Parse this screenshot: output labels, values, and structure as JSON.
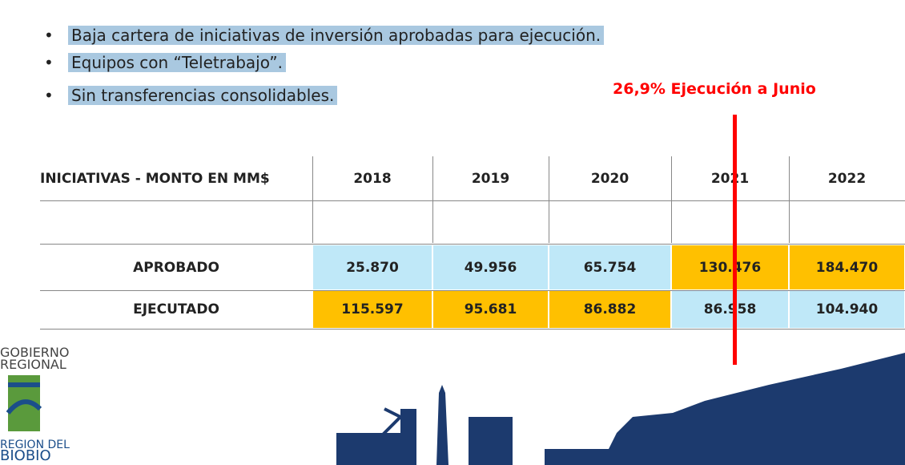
{
  "bullets": [
    "Baja cartera de iniciativas de inversión aprobadas para ejecución.",
    "Equipos con “Teletrabajo”.",
    "Sin transferencias consolidables."
  ],
  "annotation": "26,9% Ejecución a Junio",
  "table": {
    "header": [
      "INICIATIVAS - MONTO EN MM$",
      "2018",
      "2019",
      "2020",
      "2021",
      "2022"
    ],
    "rows": [
      [
        "APROBADO",
        "25.870",
        "49.956",
        "65.754",
        "130.476",
        "184.470"
      ],
      [
        "EJECUTADO",
        "115.597",
        "95.681",
        "86.882",
        "86.958",
        "104.940"
      ]
    ]
  },
  "logo": {
    "line1": "GOBIERNO",
    "line2": "REGIONAL",
    "line3": "REGION DEL",
    "line4": "BIOBIO"
  }
}
